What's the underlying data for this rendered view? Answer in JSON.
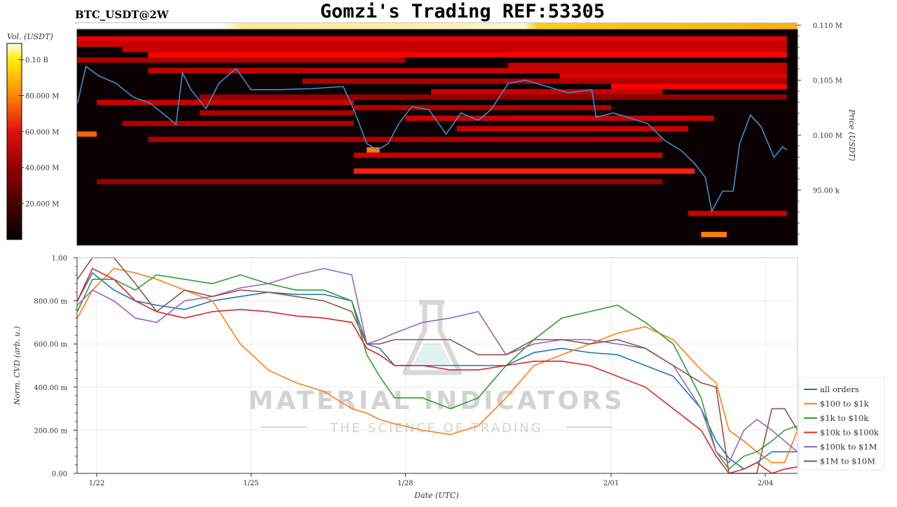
{
  "header": {
    "title": "Gomzi's Trading REF:53305",
    "symbol": "BTC_USDT@2W"
  },
  "watermark": {
    "line1": "MATERIAL INDICATORS",
    "line2": "THE SCIENCE OF TRADING"
  },
  "chart_data": [
    {
      "type": "heatmap",
      "ylabel": "Price (USDT)",
      "colorbar_label": "Vol. (USDT)",
      "colorbar_ticks": [
        "0.10 B",
        "80.000 M",
        "60.000 M",
        "40.000 M",
        "20.000 M"
      ],
      "colorbar_tick_values_musd": [
        100,
        80,
        60,
        40,
        20
      ],
      "colorbar_range_musd": [
        0,
        109
      ],
      "colormap": "hot",
      "y_ticks": [
        "0.110 M",
        "0.105 M",
        "0.100 M",
        "95.00 k"
      ],
      "y_tick_values_k": [
        110,
        105,
        100,
        95
      ],
      "ylim_k": [
        90,
        110.4
      ],
      "xlim": [
        "01-21T15:00",
        "02-04T10:00"
      ],
      "band_height_k": 0.5,
      "bands": [
        [
          109.5,
          "01-21T15:00",
          "02-04T10:00",
          0.35
        ],
        [
          109.0,
          "01-21T15:00",
          "02-04T10:00",
          0.3
        ],
        [
          108.5,
          "01-22T12:00",
          "02-04T10:00",
          0.3
        ],
        [
          108.0,
          "01-23T00:00",
          "02-04T10:00",
          0.4
        ],
        [
          107.5,
          "01-21T15:00",
          "01-28T00:00",
          0.25
        ],
        [
          107.0,
          "01-30T00:00",
          "02-04T10:00",
          0.3
        ],
        [
          106.5,
          "01-23T00:00",
          "02-04T10:00",
          0.3
        ],
        [
          106.0,
          "01-31T00:00",
          "02-04T10:00",
          0.35
        ],
        [
          105.5,
          "01-26T00:00",
          "02-04T10:00",
          0.25
        ],
        [
          105.0,
          "02-01T00:00",
          "02-04T10:00",
          0.4
        ],
        [
          104.5,
          "01-28T12:00",
          "02-02T00:00",
          0.3
        ],
        [
          104.0,
          "01-24T00:00",
          "02-04T10:00",
          0.2
        ],
        [
          103.5,
          "01-22T00:00",
          "01-27T00:00",
          0.3
        ],
        [
          103.0,
          "01-27T00:00",
          "02-01T00:00",
          0.25
        ],
        [
          102.5,
          "01-24T00:00",
          "01-27T00:00",
          0.25
        ],
        [
          102.0,
          "01-28T00:00",
          "02-03T00:00",
          0.3
        ],
        [
          101.5,
          "01-22T12:00",
          "01-27T00:00",
          0.25
        ],
        [
          101.0,
          "01-29T00:00",
          "02-02T12:00",
          0.3
        ],
        [
          100.5,
          "01-21T15:00",
          "01-22T00:00",
          0.55
        ],
        [
          100.0,
          "01-23T00:00",
          "02-02T00:00",
          0.25
        ],
        [
          99.0,
          "01-27T06:00",
          "01-27T12:00",
          0.6
        ],
        [
          98.5,
          "01-27T00:00",
          "02-02T00:00",
          0.3
        ],
        [
          97.0,
          "01-27T00:00",
          "02-02T15:00",
          0.45
        ],
        [
          96.0,
          "01-22T00:00",
          "02-02T00:00",
          0.2
        ],
        [
          93.0,
          "02-02T12:00",
          "02-04T10:00",
          0.3
        ],
        [
          91.0,
          "02-02T18:00",
          "02-03T06:00",
          0.6
        ]
      ],
      "price_line": {
        "color": "#3a8fd0",
        "x": [
          "01-21T15:00",
          "01-21T19:00",
          "01-22T01:00",
          "01-22T09:00",
          "01-22T17:00",
          "01-23T01:00",
          "01-23T09:00",
          "01-23T13:00",
          "01-23T16:00",
          "01-23T20:00",
          "01-24T03:00",
          "01-24T09:00",
          "01-24T17:00",
          "01-25T00:00",
          "01-25T12:00",
          "01-26T05:00",
          "01-26T19:00",
          "01-27T00:00",
          "01-27T06:00",
          "01-27T11:00",
          "01-27T16:00",
          "01-27T21:00",
          "01-28T03:00",
          "01-28T11:00",
          "01-28T19:00",
          "01-29T02:00",
          "01-29T10:00",
          "01-29T16:00",
          "01-30T00:00",
          "01-30T08:00",
          "01-30T18:00",
          "01-31T04:00",
          "01-31T15:00",
          "01-31T17:00",
          "02-01T01:00",
          "02-01T09:00",
          "02-01T17:00",
          "02-02T01:00",
          "02-02T09:00",
          "02-02T15:00",
          "02-02T20:00",
          "02-02T23:00",
          "02-03T04:00",
          "02-03T09:00",
          "02-03T12:00",
          "02-03T17:00",
          "02-03T22:00",
          "02-04T04:00",
          "02-04T08:00",
          "02-04T10:00"
        ],
        "y_k": [
          103.4,
          106.9,
          106.0,
          105.3,
          104.0,
          103.4,
          102.1,
          101.4,
          106.3,
          104.7,
          102.9,
          105.3,
          106.7,
          104.7,
          104.7,
          104.8,
          105.0,
          102.8,
          99.6,
          99.0,
          99.6,
          101.5,
          103.1,
          102.8,
          100.5,
          102.5,
          101.8,
          102.8,
          105.3,
          105.6,
          105.0,
          104.4,
          104.7,
          102.1,
          102.5,
          102.0,
          101.5,
          99.9,
          98.9,
          97.7,
          96.4,
          93.2,
          95.1,
          95.1,
          99.6,
          102.3,
          101.2,
          98.3,
          99.3,
          99.0
        ]
      }
    },
    {
      "type": "line",
      "xlabel": "Date (UTC)",
      "ylabel": "Norm. CVD (arb. u.)",
      "ylim": [
        0,
        1
      ],
      "y_ticks": [
        "1.00",
        "800.00 m",
        "600.00 m",
        "400.00 m",
        "200.00 m",
        "0.00"
      ],
      "y_tick_values": [
        1,
        0.8,
        0.6,
        0.4,
        0.2,
        0
      ],
      "x_ticks": [
        "1/22",
        "1/25",
        "1/28",
        "2/01",
        "2/04"
      ],
      "x_tick_dates": [
        "01-22T00:00",
        "01-25T00:00",
        "01-28T00:00",
        "02-01T00:00",
        "02-04T00:00"
      ],
      "grid": true,
      "legend_position": "right",
      "x": [
        "01-21T15:00",
        "01-21T22:00",
        "01-22T08:00",
        "01-22T18:00",
        "01-23T04:00",
        "01-23T17:00",
        "01-24T06:00",
        "01-24T19:00",
        "01-25T08:00",
        "01-25T21:00",
        "01-26T10:00",
        "01-26T23:00",
        "01-27T06:00",
        "01-27T12:00",
        "01-27T19:00",
        "01-28T08:00",
        "01-28T21:00",
        "01-29T10:00",
        "01-29T23:00",
        "01-30T12:00",
        "01-31T01:00",
        "01-31T14:00",
        "02-01T03:00",
        "02-01T16:00",
        "02-02T05:00",
        "02-02T18:00",
        "02-03T01:00",
        "02-03T07:00",
        "02-03T14:00",
        "02-03T20:00",
        "02-04T03:00",
        "02-04T09:00",
        "02-04T15:00"
      ],
      "series": [
        {
          "name": "all orders",
          "color": "#1f77b4",
          "values": [
            0.8,
            0.93,
            0.85,
            0.8,
            0.78,
            0.76,
            0.8,
            0.82,
            0.84,
            0.83,
            0.83,
            0.8,
            0.6,
            0.58,
            0.5,
            0.5,
            0.5,
            0.5,
            0.5,
            0.56,
            0.58,
            0.56,
            0.55,
            0.5,
            0.45,
            0.3,
            0.15,
            0.07,
            0.02,
            0.05,
            0.1,
            0.1,
            0.1
          ]
        },
        {
          "name": "$100 to $1k",
          "color": "#ff7f0e",
          "values": [
            0.72,
            0.85,
            0.95,
            0.93,
            0.9,
            0.85,
            0.8,
            0.6,
            0.48,
            0.42,
            0.38,
            0.3,
            0.28,
            0.25,
            0.23,
            0.2,
            0.18,
            0.22,
            0.35,
            0.5,
            0.55,
            0.6,
            0.65,
            0.68,
            0.62,
            0.48,
            0.42,
            0.2,
            0.15,
            0.1,
            0.05,
            0.05,
            0.2
          ]
        },
        {
          "name": "$1k to $10k",
          "color": "#2ca02c",
          "values": [
            0.75,
            0.9,
            0.9,
            0.85,
            0.92,
            0.9,
            0.88,
            0.92,
            0.88,
            0.85,
            0.85,
            0.8,
            0.55,
            0.45,
            0.35,
            0.35,
            0.3,
            0.35,
            0.5,
            0.62,
            0.72,
            0.75,
            0.78,
            0.7,
            0.6,
            0.35,
            0.1,
            0.02,
            0.08,
            0.1,
            0.15,
            0.2,
            0.22
          ]
        },
        {
          "name": "$10k to $100k",
          "color": "#d62728",
          "values": [
            0.8,
            0.95,
            0.9,
            0.8,
            0.75,
            0.72,
            0.75,
            0.76,
            0.75,
            0.73,
            0.72,
            0.7,
            0.58,
            0.55,
            0.5,
            0.5,
            0.48,
            0.48,
            0.5,
            0.52,
            0.52,
            0.5,
            0.45,
            0.4,
            0.3,
            0.2,
            0.08,
            0.0,
            0.02,
            0.05,
            0.0,
            0.02,
            0.03
          ]
        },
        {
          "name": "$100k to $1M",
          "color": "#9467bd",
          "values": [
            0.78,
            0.85,
            0.8,
            0.72,
            0.7,
            0.8,
            0.82,
            0.86,
            0.88,
            0.92,
            0.95,
            0.92,
            0.6,
            0.62,
            0.65,
            0.7,
            0.72,
            0.75,
            0.55,
            0.6,
            0.62,
            0.62,
            0.6,
            0.58,
            0.5,
            0.3,
            0.1,
            0.05,
            0.2,
            0.25,
            0.2,
            0.15,
            0.1
          ]
        },
        {
          "name": "$1M to $10M",
          "color": "#8c564b",
          "values": [
            0.9,
            1.0,
            1.0,
            0.88,
            0.75,
            0.85,
            0.82,
            0.85,
            0.84,
            0.82,
            0.8,
            0.75,
            0.6,
            0.6,
            0.62,
            0.62,
            0.62,
            0.55,
            0.55,
            0.62,
            0.62,
            0.6,
            0.62,
            0.58,
            0.5,
            0.42,
            0.4,
            0.0,
            0.0,
            0.0,
            0.3,
            0.3,
            0.2
          ]
        }
      ]
    }
  ]
}
